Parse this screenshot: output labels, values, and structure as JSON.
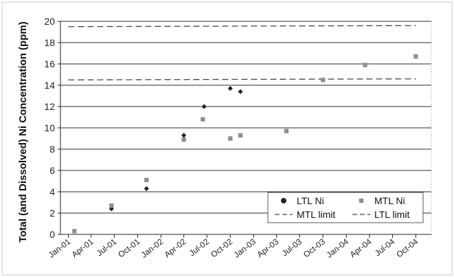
{
  "chart_data": {
    "type": "scatter",
    "title": "",
    "xlabel": "",
    "ylabel": "Total (and Dissolved) Ni Concentration (ppm)",
    "ylim": [
      0,
      20
    ],
    "yticks": [
      0,
      2,
      4,
      6,
      8,
      10,
      12,
      14,
      16,
      18,
      20
    ],
    "xlim": [
      "2000-12-01",
      "2004-12-01"
    ],
    "xticks": [
      {
        "date": "2001-01-01",
        "label": "Jan-01"
      },
      {
        "date": "2001-04-01",
        "label": "Apr-01"
      },
      {
        "date": "2001-07-01",
        "label": "Jul-01"
      },
      {
        "date": "2001-10-01",
        "label": "Oct-01"
      },
      {
        "date": "2002-01-01",
        "label": "Jan-02"
      },
      {
        "date": "2002-04-01",
        "label": "Apr-02"
      },
      {
        "date": "2002-07-01",
        "label": "Jul-02"
      },
      {
        "date": "2002-10-01",
        "label": "Oct-02"
      },
      {
        "date": "2003-01-01",
        "label": "Jan-03"
      },
      {
        "date": "2003-04-01",
        "label": "Apr-03"
      },
      {
        "date": "2003-07-01",
        "label": "Jul-03"
      },
      {
        "date": "2003-10-01",
        "label": "Oct-03"
      },
      {
        "date": "2004-01-01",
        "label": "Jan-04"
      },
      {
        "date": "2004-04-01",
        "label": "Apr-04"
      },
      {
        "date": "2004-07-01",
        "label": "Jul-04"
      },
      {
        "date": "2004-10-01",
        "label": "Oct-04"
      }
    ],
    "grid": true,
    "legend_position": "bottom-right",
    "series": [
      {
        "name": "LTL Ni",
        "kind": "points",
        "marker": "diamond",
        "color": "#222222",
        "points": [
          {
            "x": "2001-06-20",
            "y": 2.4
          },
          {
            "x": "2001-11-05",
            "y": 4.3
          },
          {
            "x": "2002-04-01",
            "y": 9.3
          },
          {
            "x": "2002-06-20",
            "y": 12.0
          },
          {
            "x": "2002-10-01",
            "y": 13.7
          },
          {
            "x": "2002-11-10",
            "y": 13.4
          }
        ]
      },
      {
        "name": "MTL Ni",
        "kind": "points",
        "marker": "square",
        "color": "#8f8f8f",
        "points": [
          {
            "x": "2001-01-25",
            "y": 0.3
          },
          {
            "x": "2001-06-20",
            "y": 2.7
          },
          {
            "x": "2001-11-05",
            "y": 5.1
          },
          {
            "x": "2002-04-01",
            "y": 8.9
          },
          {
            "x": "2002-06-15",
            "y": 10.8
          },
          {
            "x": "2002-10-01",
            "y": 9.0
          },
          {
            "x": "2002-11-10",
            "y": 9.3
          },
          {
            "x": "2003-05-10",
            "y": 9.7
          },
          {
            "x": "2003-10-01",
            "y": 14.5
          },
          {
            "x": "2004-03-15",
            "y": 15.9
          },
          {
            "x": "2004-10-01",
            "y": 16.7
          }
        ]
      },
      {
        "name": "MTL limit",
        "kind": "line",
        "dash": "dashed",
        "color": "#444444",
        "points": [
          {
            "x": "2001-01-01",
            "y": 19.5
          },
          {
            "x": "2004-10-01",
            "y": 19.6
          }
        ]
      },
      {
        "name": "LTL limit",
        "kind": "line",
        "dash": "dashed",
        "color": "#444444",
        "points": [
          {
            "x": "2001-01-01",
            "y": 14.5
          },
          {
            "x": "2004-10-01",
            "y": 14.6
          }
        ]
      }
    ]
  }
}
